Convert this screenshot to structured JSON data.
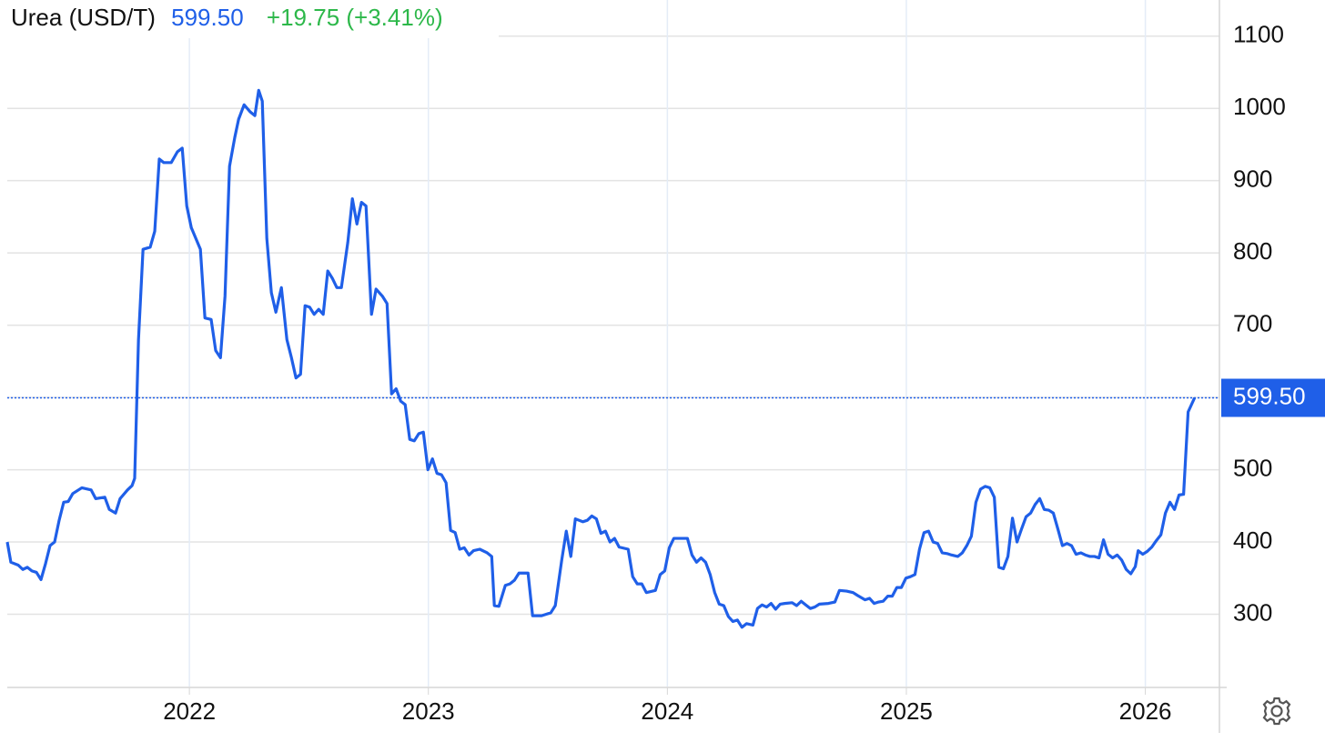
{
  "chart_data": {
    "type": "line",
    "title": "Urea (USD/T)",
    "last": {
      "value": 599.5,
      "label": "599.50"
    },
    "change": "+19.75 (+3.41%)",
    "xlim": [
      2021.238,
      2026.31
    ],
    "xticks": [
      2022,
      2023,
      2024,
      2025,
      2026
    ],
    "ylim": [
      200,
      1150
    ],
    "yticks": [
      300,
      400,
      500,
      600,
      700,
      800,
      900,
      1000,
      1100
    ],
    "grid": true,
    "x": [
      2021.238,
      2021.253,
      2021.284,
      2021.303,
      2021.322,
      2021.341,
      2021.36,
      2021.379,
      2021.398,
      2021.417,
      2021.436,
      2021.455,
      2021.474,
      2021.493,
      2021.512,
      2021.55,
      2021.589,
      2021.608,
      2021.646,
      2021.665,
      2021.691,
      2021.71,
      2021.741,
      2021.76,
      2021.771,
      2021.787,
      2021.806,
      2021.836,
      2021.855,
      2021.874,
      2021.893,
      2021.924,
      2021.95,
      2021.97,
      2021.989,
      2022.008,
      2022.027,
      2022.046,
      2022.065,
      2022.091,
      2022.11,
      2022.13,
      2022.149,
      2022.168,
      2022.19,
      2022.206,
      2022.229,
      2022.255,
      2022.274,
      2022.29,
      2022.305,
      2022.324,
      2022.343,
      2022.362,
      2022.385,
      2022.408,
      2022.427,
      2022.446,
      2022.465,
      2022.484,
      2022.503,
      2022.522,
      2022.541,
      2022.56,
      2022.579,
      2022.598,
      2022.617,
      2022.636,
      2022.663,
      2022.682,
      2022.701,
      2022.72,
      2022.739,
      2022.762,
      2022.781,
      2022.808,
      2022.827,
      2022.846,
      2022.865,
      2022.884,
      2022.903,
      2022.922,
      2022.941,
      2022.96,
      2022.979,
      2022.998,
      2023.017,
      2023.036,
      2023.055,
      2023.074,
      2023.093,
      2023.112,
      2023.131,
      2023.15,
      2023.17,
      2023.189,
      2023.215,
      2023.246,
      2023.265,
      2023.276,
      2023.295,
      2023.322,
      2023.341,
      2023.36,
      2023.379,
      2023.417,
      2023.436,
      2023.474,
      2023.493,
      2023.512,
      2023.531,
      2023.558,
      2023.577,
      2023.596,
      2023.615,
      2023.646,
      2023.665,
      2023.684,
      2023.703,
      2023.722,
      2023.741,
      2023.76,
      2023.779,
      2023.798,
      2023.836,
      2023.855,
      2023.874,
      2023.893,
      2023.912,
      2023.95,
      2023.97,
      2023.989,
      2024.008,
      2024.027,
      2024.057,
      2024.084,
      2024.103,
      2024.122,
      2024.141,
      2024.16,
      2024.179,
      2024.198,
      2024.217,
      2024.236,
      2024.255,
      2024.274,
      2024.293,
      2024.312,
      2024.331,
      2024.358,
      2024.377,
      2024.396,
      2024.415,
      2024.434,
      2024.453,
      2024.472,
      2024.491,
      2024.522,
      2024.541,
      2024.56,
      2024.579,
      2024.598,
      2024.617,
      2024.636,
      2024.674,
      2024.701,
      2024.72,
      2024.75,
      2024.777,
      2024.796,
      2024.827,
      2024.846,
      2024.865,
      2024.884,
      2024.903,
      2024.922,
      2024.941,
      2024.96,
      2024.979,
      2024.998,
      2025.017,
      2025.036,
      2025.055,
      2025.074,
      2025.093,
      2025.112,
      2025.131,
      2025.15,
      2025.17,
      2025.189,
      2025.215,
      2025.234,
      2025.253,
      2025.272,
      2025.291,
      2025.31,
      2025.33,
      2025.349,
      2025.368,
      2025.387,
      2025.406,
      2025.425,
      2025.444,
      2025.463,
      2025.482,
      2025.501,
      2025.52,
      2025.539,
      2025.558,
      2025.577,
      2025.596,
      2025.615,
      2025.634,
      2025.653,
      2025.672,
      2025.691,
      2025.71,
      2025.73,
      2025.749,
      2025.768,
      2025.787,
      2025.806,
      2025.825,
      2025.844,
      2025.863,
      2025.882,
      2025.901,
      2025.92,
      2025.939,
      2025.958,
      2025.97,
      2025.989,
      2026.008,
      2026.027,
      2026.046,
      2026.065,
      2026.084,
      2026.103,
      2026.122,
      2026.141,
      2026.16,
      2026.179,
      2026.206
    ],
    "series": [
      {
        "name": "Urea (USD/T)",
        "color": "#1f5fe8",
        "values": [
          400,
          372,
          368,
          362,
          365,
          360,
          358,
          348,
          370,
          395,
          400,
          430,
          455,
          456,
          467,
          475,
          472,
          460,
          462,
          445,
          440,
          460,
          472,
          478,
          488,
          680,
          805,
          808,
          830,
          930,
          925,
          925,
          940,
          945,
          865,
          835,
          820,
          805,
          710,
          708,
          665,
          655,
          740,
          920,
          960,
          985,
          1005,
          995,
          990,
          1025,
          1010,
          820,
          745,
          718,
          752,
          680,
          655,
          627,
          632,
          727,
          725,
          715,
          722,
          715,
          775,
          765,
          752,
          752,
          815,
          875,
          840,
          870,
          865,
          715,
          750,
          740,
          730,
          605,
          612,
          595,
          590,
          542,
          540,
          550,
          552,
          500,
          515,
          495,
          493,
          482,
          416,
          413,
          390,
          392,
          382,
          388,
          390,
          385,
          380,
          312,
          311,
          340,
          342,
          347,
          357,
          357,
          298,
          298,
          300,
          302,
          312,
          375,
          415,
          380,
          432,
          428,
          430,
          436,
          432,
          412,
          415,
          400,
          405,
          393,
          390,
          352,
          342,
          342,
          330,
          333,
          355,
          360,
          392,
          405,
          405,
          405,
          382,
          372,
          378,
          372,
          355,
          330,
          314,
          312,
          297,
          290,
          292,
          282,
          287,
          285,
          308,
          313,
          310,
          315,
          307,
          314,
          315,
          316,
          312,
          318,
          313,
          308,
          310,
          314,
          315,
          317,
          333,
          332,
          330,
          326,
          320,
          322,
          315,
          317,
          318,
          325,
          325,
          337,
          337,
          350,
          352,
          355,
          390,
          413,
          415,
          400,
          398,
          385,
          384,
          382,
          380,
          385,
          395,
          408,
          455,
          473,
          477,
          475,
          462,
          365,
          363,
          380,
          433,
          400,
          418,
          435,
          440,
          452,
          460,
          445,
          444,
          440,
          418,
          395,
          398,
          395,
          383,
          385,
          382,
          380,
          380,
          378,
          403,
          383,
          378,
          382,
          375,
          362,
          356,
          366,
          388,
          383,
          387,
          393,
          402,
          410,
          440,
          455,
          445,
          465,
          466,
          580,
          599.5
        ]
      }
    ]
  }
}
